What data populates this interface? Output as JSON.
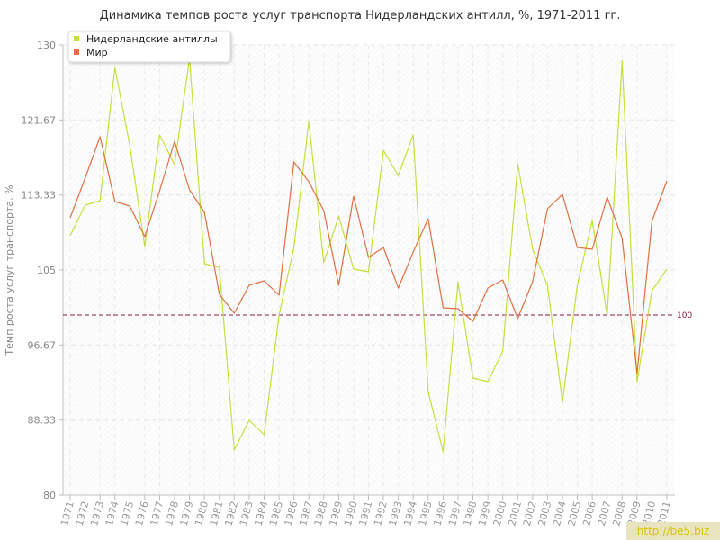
{
  "chart_data": {
    "type": "line",
    "title": "Динамика темпов роста услуг транспорта Нидерландских антилл, %, 1971-2011 гг.",
    "ylabel": "Темп роста услуг транспорта, %",
    "ylim": [
      80,
      130
    ],
    "yticks": [
      "80",
      "88.33",
      "96.67",
      "105",
      "113.33",
      "121.67",
      "130"
    ],
    "grid": true,
    "legend_position": "top-left",
    "reference_line": {
      "value": 100,
      "label": "100",
      "color": "#8a1a3a"
    },
    "x": [
      "1971",
      "1972",
      "1973",
      "1974",
      "1975",
      "1976",
      "1977",
      "1978",
      "1979",
      "1980",
      "1981",
      "1982",
      "1983",
      "1984",
      "1985",
      "1986",
      "1987",
      "1988",
      "1989",
      "1990",
      "1991",
      "1992",
      "1993",
      "1994",
      "1995",
      "1996",
      "1997",
      "1998",
      "1999",
      "2000",
      "2001",
      "2002",
      "2003",
      "2004",
      "2005",
      "2006",
      "2007",
      "2008",
      "2009",
      "2010",
      "2011"
    ],
    "series": [
      {
        "name": "Нидерландские антиллы",
        "color": "#c5e03a",
        "values": [
          108.8,
          112.2,
          112.7,
          127.5,
          118.8,
          107.6,
          120.0,
          116.7,
          128.5,
          105.7,
          105.3,
          85.0,
          88.3,
          86.7,
          100.0,
          107.5,
          121.5,
          105.8,
          111.0,
          105.1,
          104.8,
          118.3,
          115.5,
          120.0,
          91.5,
          84.8,
          103.7,
          93.0,
          92.6,
          96.0,
          116.8,
          107.3,
          103.3,
          90.3,
          103.3,
          110.5,
          100.0,
          128.2,
          92.6,
          102.7,
          105.1
        ]
      },
      {
        "name": "Мир",
        "color": "#e07040",
        "values": [
          110.8,
          115.2,
          119.8,
          112.6,
          112.1,
          108.7,
          113.8,
          119.3,
          113.9,
          111.4,
          102.3,
          100.2,
          103.3,
          103.8,
          102.2,
          117.0,
          114.8,
          111.6,
          103.3,
          113.2,
          106.4,
          107.5,
          103.0,
          107.0,
          110.7,
          100.8,
          100.7,
          99.3,
          103.0,
          103.9,
          99.6,
          103.7,
          111.8,
          113.4,
          107.5,
          107.3,
          113.1,
          108.5,
          93.5,
          110.4,
          114.9
        ]
      }
    ]
  },
  "watermark": "http://be5.biz"
}
